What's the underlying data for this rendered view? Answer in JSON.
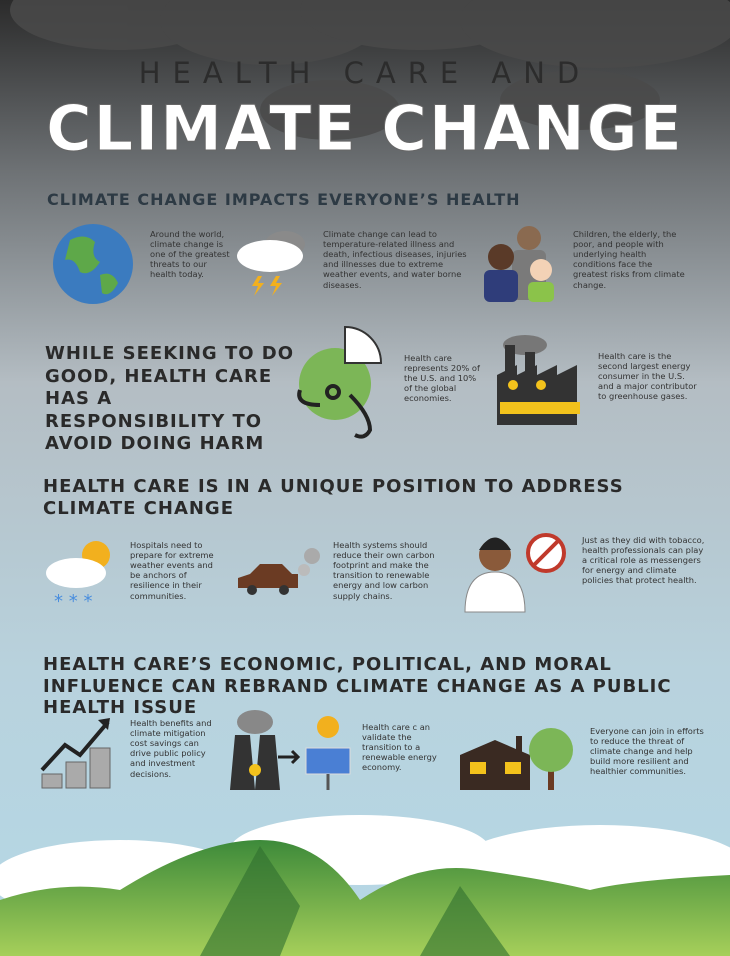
{
  "title": {
    "line1": "HEALTH CARE AND",
    "line2": "CLIMATE CHANGE"
  },
  "sections": [
    {
      "heading": "CLIMATE CHANGE IMPACTS EVERYONE’S HEALTH",
      "items": [
        "Around the world, climate change is one of the greatest threats to our health today.",
        "Climate change can lead to temperature-related illness and death, infectious diseases, injuries and illnesses due to extreme weather events, and water borne diseases.",
        "Children, the elderly, the poor, and people with underlying health conditions face the greatest risks from climate change."
      ]
    },
    {
      "heading": "WHILE SEEKING TO DO GOOD, HEALTH CARE HAS A RESPONSIBILITY TO AVOID DOING HARM",
      "items": [
        "Health care represents 20% of the U.S. and 10% of the global economies.",
        "Health care is the second largest energy consumer in the U.S. and a major contributor to greenhouse gases."
      ]
    },
    {
      "heading": "HEALTH CARE IS IN A UNIQUE POSITION TO ADDRESS CLIMATE CHANGE",
      "items": [
        "Hospitals need to prepare for extreme weather events and be anchors of resilience in their communities.",
        "Health systems should reduce their own carbon footprint and make the transition to renewable energy and low carbon supply chains.",
        "Just as they did with tobacco, health professionals can play a critical role as messengers for energy and climate policies that protect health."
      ]
    },
    {
      "heading": "HEALTH CARE’S ECONOMIC, POLITICAL, AND MORAL INFLUENCE CAN REBRAND CLIMATE CHANGE AS A PUBLIC HEALTH ISSUE",
      "items": [
        "Health benefits and climate mitigation cost savings can drive public policy and investment decisions.",
        "Health care c an validate the transition to a renewable energy economy.",
        "Everyone can join in efforts to reduce the threat of climate change and help build more resilient and healthier communities."
      ]
    }
  ]
}
